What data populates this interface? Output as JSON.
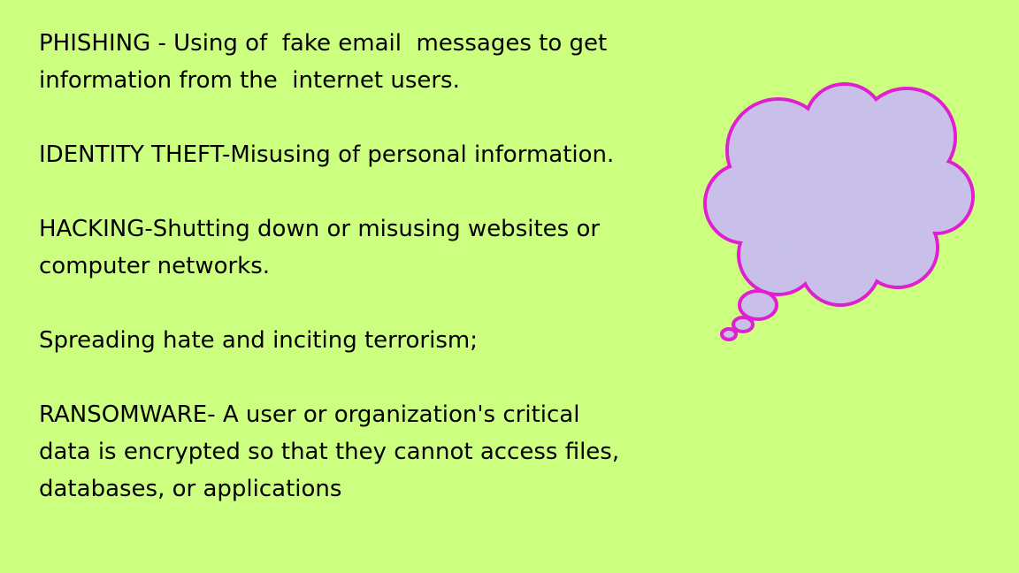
{
  "items": [
    {
      "lines": [
        "PHISHING - Using of  fake email  messages to get",
        "information from the  internet users."
      ]
    },
    {
      "lines": [
        "IDENTITY THEFT-Misusing of personal information."
      ]
    },
    {
      "lines": [
        "HACKING-Shutting down or misusing websites or",
        "computer networks."
      ]
    },
    {
      "lines": [
        "Spreading hate and inciting terrorism;"
      ]
    },
    {
      "lines": [
        "RANSOMWARE- A user or organization's critical",
        "data is encrypted so that they cannot access files,",
        "databases, or applications"
      ]
    }
  ]
}
